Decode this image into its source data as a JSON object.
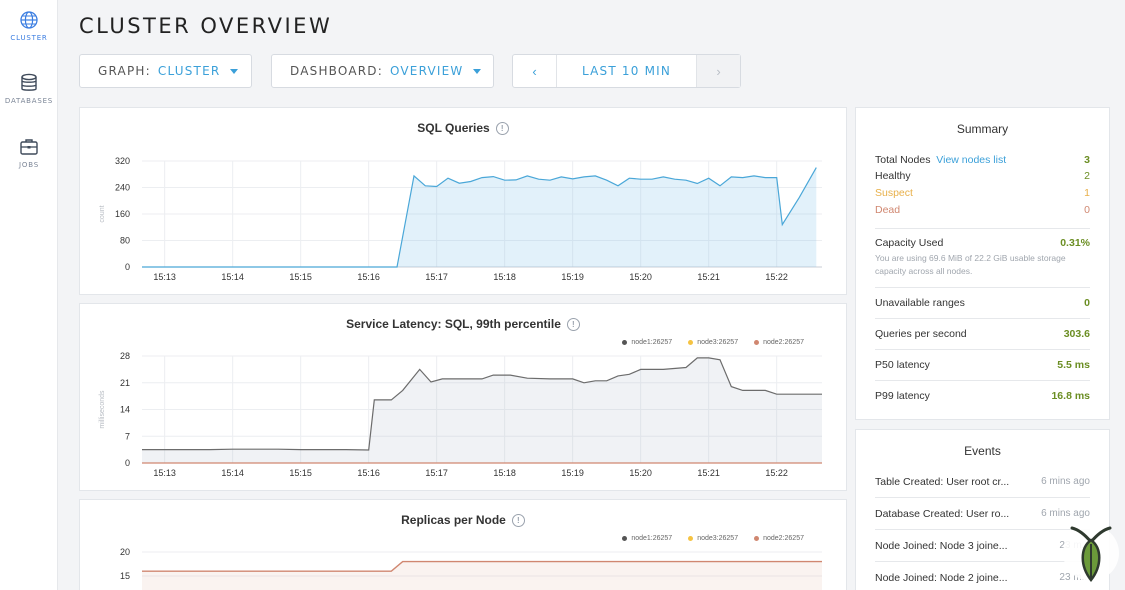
{
  "nav": [
    {
      "label": "CLUSTER",
      "icon": "globe-icon",
      "active": true
    },
    {
      "label": "DATABASES",
      "icon": "database-icon",
      "active": false
    },
    {
      "label": "JOBS",
      "icon": "briefcase-icon",
      "active": false
    }
  ],
  "header": {
    "title": "CLUSTER OVERVIEW",
    "graph_label": "GRAPH:",
    "graph_value": "CLUSTER",
    "dashboard_label": "DASHBOARD:",
    "dashboard_value": "OVERVIEW",
    "time_range": "LAST 10 MIN",
    "prev_arrow": "‹",
    "next_arrow": "›"
  },
  "graphs": [
    {
      "title": "SQL Queries",
      "info": "!",
      "ylabel": "count",
      "yticks": [
        "320",
        "240",
        "160",
        "80",
        "0"
      ],
      "xticks": [
        "15:13",
        "15:14",
        "15:15",
        "15:16",
        "15:17",
        "15:18",
        "15:19",
        "15:20",
        "15:21",
        "15:22"
      ]
    },
    {
      "title": "Service Latency: SQL, 99th percentile",
      "info": "!",
      "ylabel": "milliseconds",
      "yticks": [
        "28",
        "21",
        "14",
        "7",
        "0"
      ],
      "xticks": [
        "15:13",
        "15:14",
        "15:15",
        "15:16",
        "15:17",
        "15:18",
        "15:19",
        "15:20",
        "15:21",
        "15:22"
      ],
      "legend": [
        "node1:26257",
        "node3:26257",
        "node2:26257"
      ]
    },
    {
      "title": "Replicas per Node",
      "info": "!",
      "yticks": [
        "20",
        "15"
      ],
      "legend": [
        "node1:26257",
        "node3:26257",
        "node2:26257"
      ]
    }
  ],
  "colors": {
    "accent": "#3ba0d9",
    "node1": "#555555",
    "node3": "#f5c342",
    "node2": "#d08770",
    "healthy_green": "#6b8e23",
    "suspect": "#e8b04a",
    "dead": "#d08770"
  },
  "chart_data": [
    {
      "type": "area",
      "title": "SQL Queries",
      "ylabel": "count",
      "ylim": [
        0,
        320
      ],
      "x_range": [
        "15:12:40",
        "15:22:40"
      ],
      "series": [
        {
          "x": [
            "15:12:40",
            "15:13:00",
            "15:14:00",
            "15:15:00",
            "15:16:00",
            "15:16:25",
            "15:16:40",
            "15:16:50",
            "15:17:00",
            "15:17:10",
            "15:17:20",
            "15:17:30",
            "15:17:40",
            "15:17:50",
            "15:18:00",
            "15:18:10",
            "15:18:20",
            "15:18:30",
            "15:18:40",
            "15:18:50",
            "15:19:00",
            "15:19:10",
            "15:19:20",
            "15:19:30",
            "15:19:40",
            "15:19:50",
            "15:20:00",
            "15:20:10",
            "15:20:20",
            "15:20:30",
            "15:20:40",
            "15:20:50",
            "15:21:00",
            "15:21:10",
            "15:21:20",
            "15:21:30",
            "15:21:40",
            "15:21:50",
            "15:22:00",
            "15:22:05",
            "15:22:20",
            "15:22:35"
          ],
          "values": [
            0,
            0,
            0,
            0,
            0,
            0,
            275,
            245,
            243,
            268,
            253,
            258,
            270,
            273,
            262,
            263,
            275,
            265,
            262,
            272,
            266,
            272,
            275,
            262,
            245,
            268,
            265,
            265,
            272,
            265,
            262,
            252,
            268,
            245,
            272,
            270,
            275,
            270,
            270,
            128,
            210,
            300
          ]
        }
      ]
    },
    {
      "type": "area",
      "title": "Service Latency: SQL, 99th percentile",
      "ylabel": "milliseconds",
      "ylim": [
        0,
        28
      ],
      "x_range": [
        "15:12:40",
        "15:22:40"
      ],
      "series": [
        {
          "name": "node1:26257",
          "x": [
            "15:12:40",
            "15:13:00",
            "15:13:40",
            "15:14:00",
            "15:14:40",
            "15:15:00",
            "15:15:40",
            "15:16:00",
            "15:16:05",
            "15:16:20",
            "15:16:30",
            "15:16:45",
            "15:16:55",
            "15:17:05",
            "15:17:20",
            "15:17:40",
            "15:17:50",
            "15:18:05",
            "15:18:20",
            "15:18:40",
            "15:19:00",
            "15:19:10",
            "15:19:20",
            "15:19:30",
            "15:19:40",
            "15:19:50",
            "15:20:00",
            "15:20:20",
            "15:20:40",
            "15:20:50",
            "15:21:00",
            "15:21:10",
            "15:21:20",
            "15:21:30",
            "15:21:40",
            "15:21:50",
            "15:22:00",
            "15:22:20",
            "15:22:30",
            "15:22:40"
          ],
          "values": [
            3.5,
            3.5,
            3.5,
            3.6,
            3.6,
            3.5,
            3.5,
            3.4,
            16.5,
            16.5,
            19,
            24.5,
            21.2,
            22,
            22,
            22,
            23,
            23,
            22.2,
            22,
            22,
            21,
            21.5,
            21.5,
            22.8,
            23.2,
            24.5,
            24.5,
            25,
            27.5,
            27.5,
            27,
            20,
            19,
            19,
            19,
            18,
            18,
            18,
            18
          ]
        },
        {
          "name": "node2:26257",
          "x": [
            "15:12:40",
            "15:22:40"
          ],
          "values": [
            0,
            0
          ]
        }
      ]
    },
    {
      "type": "line",
      "title": "Replicas per Node",
      "x_range": [
        "15:12:40",
        "15:22:40"
      ],
      "series": [
        {
          "name": "node2:26257",
          "x": [
            "15:12:40",
            "15:16:20",
            "15:16:30",
            "15:22:40"
          ],
          "values": [
            16,
            16,
            18,
            18
          ]
        }
      ]
    }
  ],
  "summary": {
    "title": "Summary",
    "total_nodes_label": "Total Nodes",
    "view_nodes_link": "View nodes list",
    "total_nodes": "3",
    "healthy_label": "Healthy",
    "healthy": "2",
    "suspect_label": "Suspect",
    "suspect": "1",
    "dead_label": "Dead",
    "dead": "0",
    "capacity_label": "Capacity Used",
    "capacity": "0.31%",
    "capacity_desc": "You are using 69.6 MiB of 22.2 GiB usable storage capacity across all nodes.",
    "unavailable_label": "Unavailable ranges",
    "unavailable": "0",
    "qps_label": "Queries per second",
    "qps": "303.6",
    "p50_label": "P50 latency",
    "p50": "5.5 ms",
    "p99_label": "P99 latency",
    "p99": "16.8 ms"
  },
  "events": {
    "title": "Events",
    "items": [
      {
        "text": "Table Created: User root cr...",
        "ago": "6 mins ago"
      },
      {
        "text": "Database Created: User ro...",
        "ago": "6 mins ago"
      },
      {
        "text": "Node Joined: Node 3 joine...",
        "ago": "23 m..."
      },
      {
        "text": "Node Joined: Node 2 joine...",
        "ago": "23 m..."
      }
    ]
  }
}
